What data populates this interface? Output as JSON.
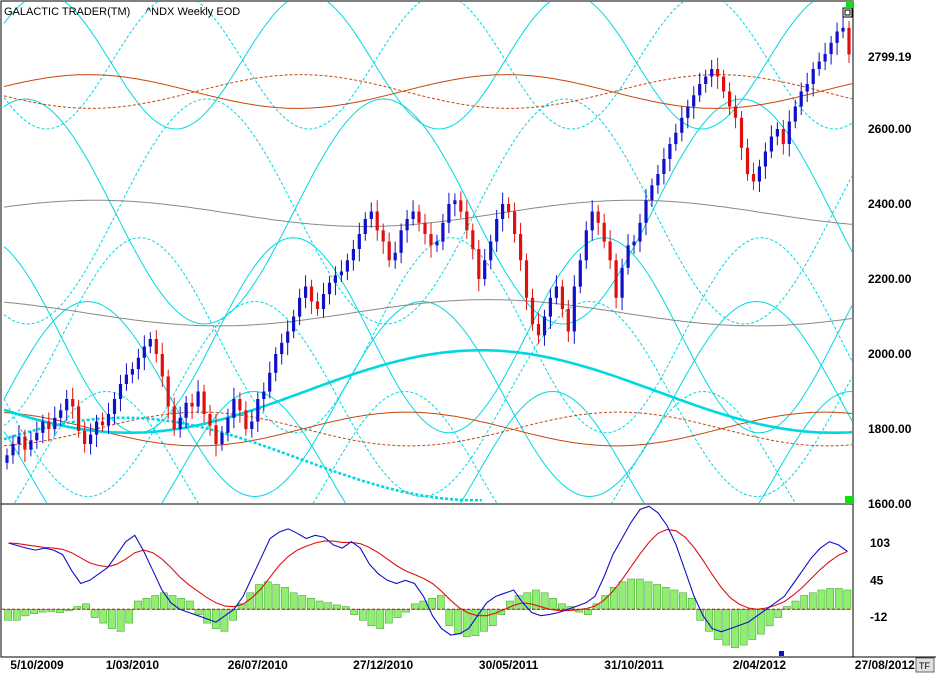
{
  "header": {
    "app_title": "GALACTIC TRADER(TM)",
    "symbol_title": "^NDX Weekly EOD"
  },
  "price_readout": "2799.19",
  "footer": {
    "tf_button": "TF"
  },
  "colors": {
    "bull": "#1010c8",
    "bear": "#e01010",
    "cycle_cyan": "#00d8e0",
    "cycle_orange": "#c8440a",
    "cycle_gray": "#888888",
    "osc_blue": "#1010c8",
    "osc_red": "#e01010",
    "hist_green": "#90ee70",
    "zero_line": "#c00000",
    "marker_green": "#10e010"
  },
  "chart_data": [
    {
      "type": "candlestick",
      "panel": "price",
      "title": "",
      "yticks": [
        "2600.00",
        "2400.00",
        "2200.00",
        "2000.00",
        "1800.00",
        "1600.00"
      ],
      "ytick_values": [
        2600,
        2400,
        2200,
        2000,
        1800,
        1600
      ],
      "ylim": [
        1600,
        2930
      ],
      "xtick_labels": [
        "5/10/2009",
        "1/03/2010",
        "26/07/2010",
        "27/12/2010",
        "30/05/2011",
        "31/10/2011",
        "2/04/2012",
        "27/08/2012"
      ],
      "xtick_index": [
        0,
        21,
        42,
        63,
        84,
        105,
        126,
        147
      ],
      "current_price": 2799.19,
      "closes": [
        1730,
        1760,
        1780,
        1745,
        1770,
        1790,
        1820,
        1800,
        1830,
        1850,
        1880,
        1860,
        1795,
        1760,
        1785,
        1820,
        1810,
        1840,
        1880,
        1920,
        1945,
        1960,
        1990,
        2020,
        2040,
        2000,
        1940,
        1860,
        1800,
        1830,
        1870,
        1860,
        1900,
        1840,
        1810,
        1760,
        1790,
        1830,
        1880,
        1850,
        1800,
        1820,
        1880,
        1900,
        1950,
        2000,
        2030,
        2060,
        2100,
        2150,
        2180,
        2140,
        2120,
        2160,
        2190,
        2210,
        2220,
        2250,
        2280,
        2320,
        2360,
        2380,
        2330,
        2300,
        2250,
        2270,
        2330,
        2360,
        2380,
        2350,
        2320,
        2290,
        2300,
        2350,
        2400,
        2410,
        2380,
        2330,
        2280,
        2200,
        2250,
        2300,
        2360,
        2400,
        2380,
        2320,
        2250,
        2150,
        2080,
        2050,
        2100,
        2150,
        2180,
        2120,
        2060,
        2180,
        2250,
        2330,
        2380,
        2350,
        2300,
        2250,
        2150,
        2230,
        2290,
        2300,
        2350,
        2410,
        2450,
        2480,
        2520,
        2560,
        2590,
        2630,
        2660,
        2690,
        2720,
        2740,
        2760,
        2740,
        2700,
        2660,
        2630,
        2550,
        2480,
        2460,
        2500,
        2540,
        2580,
        2600,
        2560,
        2620,
        2660,
        2700,
        2720,
        2760,
        2780,
        2800,
        2830,
        2860,
        2870,
        2799
      ],
      "cycles": [
        {
          "color": "cycle_cyan",
          "base": 1880,
          "amp": 260,
          "period": 56,
          "phase": 0.0,
          "dash": false
        },
        {
          "color": "cycle_cyan",
          "base": 1880,
          "amp": 260,
          "period": 56,
          "phase": 3.14,
          "dash": true
        },
        {
          "color": "cycle_cyan",
          "base": 2380,
          "amp": 300,
          "period": 60,
          "phase": 1.2,
          "dash": false
        },
        {
          "color": "cycle_cyan",
          "base": 2380,
          "amp": 300,
          "period": 60,
          "phase": 4.3,
          "dash": true
        },
        {
          "color": "cycle_cyan",
          "base": 2780,
          "amp": 180,
          "period": 44,
          "phase": 0.6,
          "dash": false
        },
        {
          "color": "cycle_cyan",
          "base": 2780,
          "amp": 180,
          "period": 44,
          "phase": 3.7,
          "dash": true
        },
        {
          "color": "cycle_cyan",
          "base": 2050,
          "amp": 260,
          "period": 52,
          "phase": 2.0,
          "dash": false
        },
        {
          "color": "cycle_cyan",
          "base": 2050,
          "amp": 260,
          "period": 52,
          "phase": 5.1,
          "dash": true
        },
        {
          "color": "cycle_cyan",
          "base": 1680,
          "amp": 220,
          "period": 50,
          "phase": 2.6,
          "dash": false
        },
        {
          "color": "cycle_cyan",
          "base": 1680,
          "amp": 220,
          "period": 50,
          "phase": 5.7,
          "dash": true
        },
        {
          "color": "cycle_orange",
          "base": 2700,
          "amp": 45,
          "period": 70,
          "phase": 0.3,
          "dash": false
        },
        {
          "color": "cycle_orange",
          "base": 2700,
          "amp": 45,
          "period": 70,
          "phase": 3.4,
          "dash": true
        },
        {
          "color": "cycle_orange",
          "base": 1800,
          "amp": 45,
          "period": 70,
          "phase": 1.8,
          "dash": false
        },
        {
          "color": "cycle_orange",
          "base": 1800,
          "amp": 45,
          "period": 70,
          "phase": 4.9,
          "dash": true
        },
        {
          "color": "cycle_gray",
          "base": 2375,
          "amp": 35,
          "period": 90,
          "phase": 0.5,
          "dash": false
        },
        {
          "color": "cycle_gray",
          "base": 2110,
          "amp": 35,
          "period": 90,
          "phase": 2.2,
          "dash": false
        },
        {
          "color": "cycle_cyan",
          "base": 1900,
          "amp": 110,
          "period": 118,
          "phase": 3.6,
          "dash": false,
          "thick": true
        },
        {
          "color": "cycle_cyan",
          "base": 1720,
          "amp": 110,
          "period": 118,
          "phase": 0.5,
          "dash": true,
          "thick": true,
          "end": 80
        }
      ]
    },
    {
      "type": "oscillator",
      "panel": "indicator",
      "yticks": [
        "103",
        "45",
        "-12"
      ],
      "ytick_values": [
        103,
        45,
        -12
      ],
      "ylim": [
        -55,
        150
      ],
      "blue_line": [
        103,
        99,
        95,
        92,
        95,
        92,
        85,
        60,
        40,
        45,
        55,
        65,
        85,
        105,
        115,
        90,
        60,
        30,
        10,
        0,
        -5,
        -10,
        -15,
        -20,
        -10,
        0,
        20,
        50,
        80,
        110,
        120,
        125,
        118,
        110,
        115,
        112,
        100,
        95,
        105,
        95,
        70,
        55,
        45,
        40,
        45,
        40,
        20,
        -10,
        -30,
        -40,
        -38,
        -30,
        -10,
        10,
        20,
        25,
        30,
        10,
        -5,
        -10,
        -8,
        -5,
        0,
        5,
        10,
        20,
        50,
        85,
        110,
        135,
        155,
        160,
        150,
        130,
        100,
        60,
        20,
        -10,
        -30,
        -35,
        -30,
        -25,
        -20,
        -10,
        0,
        10,
        20,
        40,
        60,
        80,
        95,
        105,
        100,
        90
      ],
      "red_line": [
        103,
        102,
        100,
        98,
        96,
        95,
        93,
        88,
        80,
        72,
        68,
        66,
        70,
        78,
        88,
        92,
        88,
        78,
        65,
        50,
        38,
        28,
        18,
        10,
        5,
        4,
        8,
        18,
        32,
        50,
        68,
        82,
        92,
        98,
        103,
        106,
        106,
        104,
        104,
        102,
        96,
        88,
        78,
        68,
        60,
        54,
        48,
        40,
        28,
        14,
        2,
        -6,
        -10,
        -10,
        -6,
        0,
        6,
        10,
        8,
        4,
        0,
        -2,
        -2,
        -1,
        1,
        5,
        14,
        28,
        46,
        66,
        86,
        104,
        118,
        124,
        122,
        112,
        96,
        76,
        54,
        34,
        18,
        8,
        2,
        0,
        2,
        6,
        12,
        22,
        34,
        48,
        62,
        74,
        84,
        90
      ],
      "histogram": [
        -20,
        -20,
        -12,
        -8,
        -5,
        -4,
        -6,
        -3,
        5,
        10,
        -15,
        -25,
        -35,
        -40,
        -25,
        15,
        20,
        25,
        30,
        25,
        20,
        15,
        -10,
        -25,
        -35,
        -40,
        -20,
        10,
        30,
        45,
        50,
        45,
        40,
        30,
        25,
        20,
        15,
        12,
        8,
        5,
        -10,
        -20,
        -30,
        -35,
        -25,
        -15,
        -5,
        10,
        15,
        20,
        25,
        -30,
        -45,
        -50,
        -48,
        -40,
        -30,
        -10,
        15,
        25,
        30,
        35,
        30,
        20,
        10,
        5,
        -5,
        -10,
        10,
        25,
        40,
        50,
        55,
        55,
        50,
        45,
        40,
        35,
        30,
        20,
        -20,
        -40,
        -55,
        -65,
        -70,
        -65,
        -55,
        -45,
        -30,
        -15,
        5,
        15,
        25,
        30,
        35,
        38,
        38,
        35
      ]
    }
  ]
}
